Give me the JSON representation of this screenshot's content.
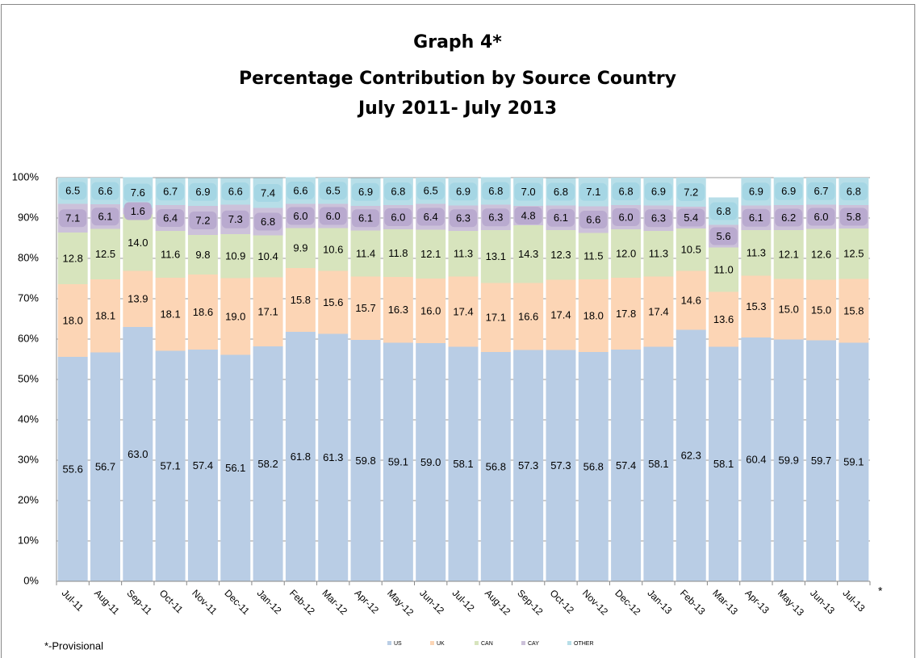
{
  "chart_data": {
    "type": "stacked_bar",
    "title_lines": [
      "Graph 4*",
      "Percentage Contribution by Source Country",
      "July 2011- July 2013"
    ],
    "footnote": "*-Provisional",
    "footnote_marker": "*",
    "categories": [
      "Jul-11",
      "Aug-11",
      "Sep-11",
      "Oct-11",
      "Nov-11",
      "Dec-11",
      "Jan-12",
      "Feb-12",
      "Mar-12",
      "Apr-12",
      "May-12",
      "Jun-12",
      "Jul-12",
      "Aug-12",
      "Sep-12",
      "Oct-12",
      "Nov-12",
      "Dec-12",
      "Jan-13",
      "Feb-13",
      "Mar-13",
      "Apr-13",
      "May-13",
      "Jun-13",
      "Jul-13"
    ],
    "series": [
      {
        "name": "US",
        "color": "#b9cde5",
        "values": [
          55.6,
          56.7,
          63.0,
          57.1,
          57.4,
          56.1,
          58.2,
          61.8,
          61.3,
          59.8,
          59.1,
          59.0,
          58.1,
          56.8,
          57.3,
          57.3,
          56.8,
          57.4,
          58.1,
          62.3,
          58.1,
          60.4,
          59.9,
          59.7,
          59.1
        ],
        "value_labels": [
          "55.6",
          "56.7",
          "63.0",
          "57.1",
          "57.4",
          "56.1",
          "58.2",
          "61.8",
          "61.3",
          "59.8",
          "59.1",
          "59.0",
          "58.1",
          "56.8",
          "57.3",
          "57.3",
          "56.8",
          "57.4",
          "58.1",
          "62.3",
          "58.1",
          "60.4",
          "59.9",
          "59.7",
          "59.1"
        ]
      },
      {
        "name": "UK",
        "color": "#fcd5b5",
        "values": [
          18.0,
          18.1,
          13.9,
          18.1,
          18.6,
          19.0,
          17.1,
          15.8,
          15.6,
          15.7,
          16.3,
          16.0,
          17.4,
          17.1,
          16.6,
          17.4,
          18.0,
          17.8,
          17.4,
          14.6,
          13.6,
          15.3,
          15.0,
          15.0,
          15.8
        ],
        "value_labels": [
          "18.0",
          "18.1",
          "13.9",
          "18.1",
          "18.6",
          "19.0",
          "17.1",
          "15.8",
          "15.6",
          "15.7",
          "16.3",
          "16.0",
          "17.4",
          "17.1",
          "16.6",
          "17.4",
          "18.0",
          "17.8",
          "17.4",
          "14.6",
          "13.6",
          "15.3",
          "15.0",
          "15.0",
          "15.8"
        ]
      },
      {
        "name": "CAN",
        "color": "#d7e4bd",
        "values": [
          12.8,
          12.5,
          14.0,
          11.6,
          9.8,
          10.9,
          10.4,
          9.9,
          10.6,
          11.4,
          11.8,
          12.1,
          11.3,
          13.1,
          14.3,
          12.3,
          11.5,
          12.0,
          11.3,
          10.5,
          11.0,
          11.3,
          12.1,
          12.6,
          12.5
        ],
        "value_labels": [
          "12.8",
          "12.5",
          "14.0",
          "11.6",
          "9.8",
          "10.9",
          "10.4",
          "9.9",
          "10.6",
          "11.4",
          "11.8",
          "12.1",
          "11.3",
          "13.1",
          "14.3",
          "12.3",
          "11.5",
          "12.0",
          "11.3",
          "10.5",
          "11.0",
          "11.3",
          "12.1",
          "12.6",
          "12.5"
        ]
      },
      {
        "name": "CAY",
        "color": "#ccc1da",
        "label_box": "#b9aacf",
        "values": [
          7.1,
          6.1,
          1.6,
          6.4,
          7.2,
          7.3,
          6.8,
          6.0,
          6.0,
          6.1,
          6.0,
          6.4,
          6.3,
          6.3,
          4.8,
          6.1,
          6.6,
          6.0,
          6.3,
          5.4,
          5.6,
          6.1,
          6.2,
          6.0,
          5.8
        ],
        "value_labels": [
          "7.1",
          "6.1",
          "1.6",
          "6.4",
          "7.2",
          "7.3",
          "6.8",
          "6.0",
          "6.0",
          "6.1",
          "6.0",
          "6.4",
          "6.3",
          "6.3",
          "4.8",
          "6.1",
          "6.6",
          "6.0",
          "6.3",
          "5.4",
          "5.6",
          "6.1",
          "6.2",
          "6.0",
          "5.8"
        ]
      },
      {
        "name": "OTHER",
        "color": "#b7dee8",
        "label_box": "#a5d6e4",
        "values": [
          6.5,
          6.6,
          7.6,
          6.7,
          6.9,
          6.6,
          7.4,
          6.6,
          6.5,
          6.9,
          6.8,
          6.5,
          6.9,
          6.8,
          7.0,
          6.8,
          7.1,
          6.8,
          6.9,
          7.2,
          6.8,
          6.9,
          6.9,
          6.7,
          6.8
        ],
        "value_labels": [
          "6.5",
          "6.6",
          "7.6",
          "6.7",
          "6.9",
          "6.6",
          "7.4",
          "6.6",
          "6.5",
          "6.9",
          "6.8",
          "6.5",
          "6.9",
          "6.8",
          "7.0",
          "6.8",
          "7.1",
          "6.8",
          "6.9",
          "7.2",
          "6.8",
          "6.9",
          "6.9",
          "6.7",
          "6.8"
        ]
      }
    ],
    "ylim": [
      0,
      100
    ],
    "yticks": [
      {
        "value": 0,
        "label": "0%"
      },
      {
        "value": 10,
        "label": "10%"
      },
      {
        "value": 20,
        "label": "20%"
      },
      {
        "value": 30,
        "label": "30%"
      },
      {
        "value": 40,
        "label": "40%"
      },
      {
        "value": 50,
        "label": "50%"
      },
      {
        "value": 60,
        "label": "60%"
      },
      {
        "value": 70,
        "label": "70%"
      },
      {
        "value": 80,
        "label": "80%"
      },
      {
        "value": 90,
        "label": "90%"
      },
      {
        "value": 100,
        "label": "100%"
      }
    ],
    "grid": true,
    "legend": "bottom"
  }
}
